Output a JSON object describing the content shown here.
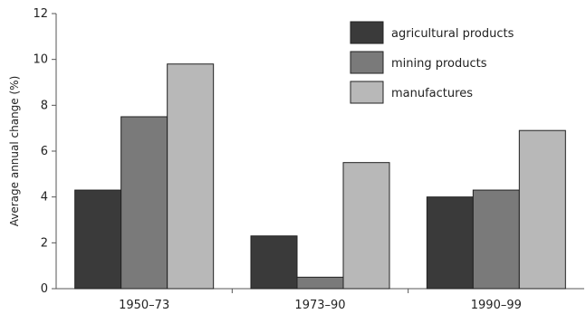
{
  "chart_data": {
    "type": "bar",
    "title": "",
    "xlabel": "",
    "ylabel": "Average annual change (%)",
    "ylim": [
      0,
      12
    ],
    "yticks": [
      0,
      2,
      4,
      6,
      8,
      10,
      12
    ],
    "grid": false,
    "legend_position": "top-right",
    "categories": [
      "1950–73",
      "1973–90",
      "1990–99"
    ],
    "series": [
      {
        "name": "agricultural products",
        "color": "#3a3a3a",
        "values": [
          4.3,
          2.3,
          4.0
        ]
      },
      {
        "name": "mining products",
        "color": "#7a7a7a",
        "values": [
          7.5,
          0.5,
          4.3
        ]
      },
      {
        "name": "manufactures",
        "color": "#b8b8b8",
        "values": [
          9.8,
          5.5,
          6.9
        ]
      }
    ]
  }
}
